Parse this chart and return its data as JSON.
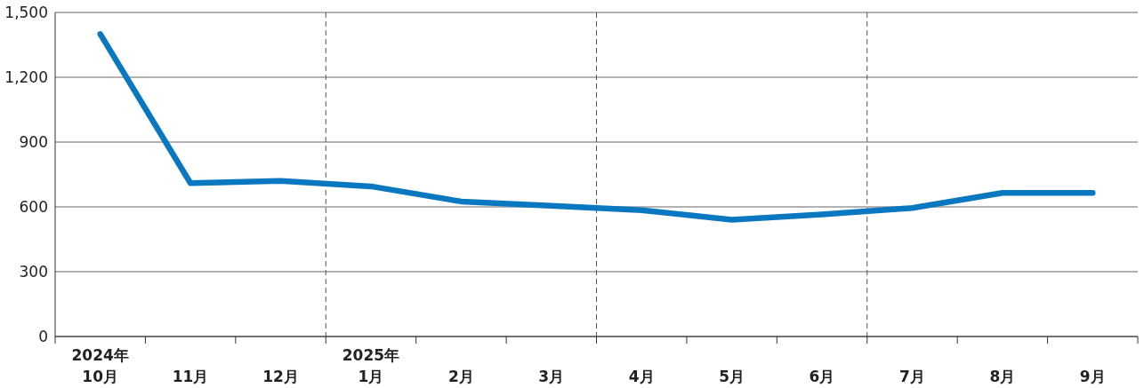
{
  "chart_data": {
    "type": "line",
    "categories": [
      "2024年\n10月",
      "11月",
      "12月",
      "2025年\n1月",
      "2月",
      "3月",
      "4月",
      "5月",
      "6月",
      "7月",
      "8月",
      "9月"
    ],
    "series": [
      {
        "color": "#0a78c0",
        "values": [
          1400,
          710,
          720,
          695,
          625,
          605,
          585,
          540,
          565,
          595,
          665,
          665
        ]
      }
    ],
    "ylim": [
      0,
      1500
    ],
    "yticks": [
      0,
      300,
      600,
      900,
      {
        "value": 1200,
        "label": "1,200"
      },
      {
        "value": 1500,
        "label": "1,500"
      }
    ],
    "grid": "y",
    "marker": "none",
    "line_style": "solid"
  }
}
